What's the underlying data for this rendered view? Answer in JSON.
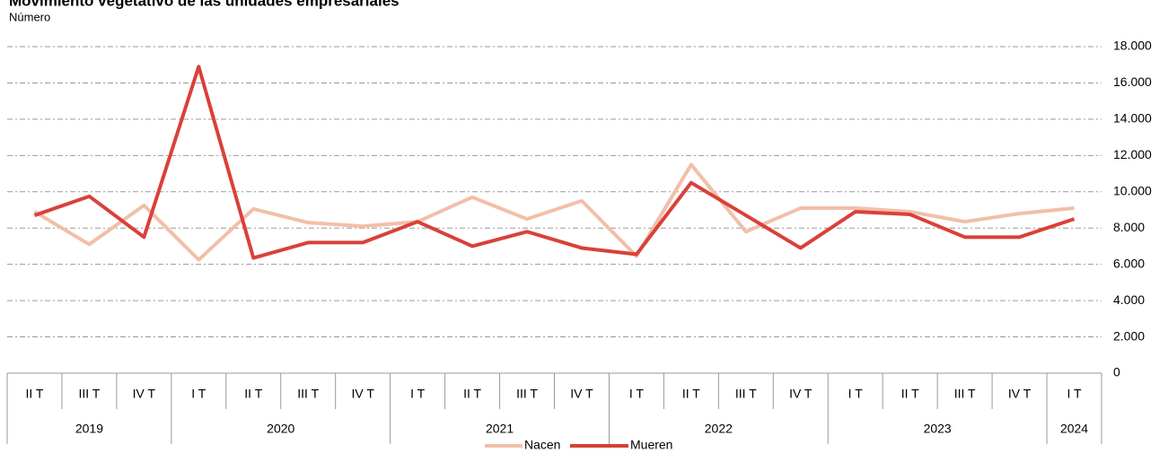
{
  "chart_data": {
    "type": "line",
    "title": "Movimiento vegetativo de las unidades empresariales",
    "subtitle": "Número",
    "years": [
      {
        "label": "2019",
        "quarters": [
          "II T",
          "III T",
          "IV T"
        ]
      },
      {
        "label": "2020",
        "quarters": [
          "I T",
          "II T",
          "III T",
          "IV T"
        ]
      },
      {
        "label": "2021",
        "quarters": [
          "I T",
          "II T",
          "III T",
          "IV T"
        ]
      },
      {
        "label": "2022",
        "quarters": [
          "I T",
          "II T",
          "III T",
          "IV T"
        ]
      },
      {
        "label": "2023",
        "quarters": [
          "I T",
          "II T",
          "III T",
          "IV T"
        ]
      },
      {
        "label": "2024",
        "quarters": [
          "I T"
        ]
      }
    ],
    "series": [
      {
        "name": "Nacen",
        "color": "#f2bfa8",
        "values": [
          8900,
          7100,
          9250,
          6250,
          9050,
          8300,
          8100,
          8350,
          9700,
          8500,
          9500,
          6450,
          11500,
          7800,
          9100,
          9100,
          8900,
          8350,
          8800,
          9100
        ]
      },
      {
        "name": "Mueren",
        "color": "#d9413a",
        "values": [
          8700,
          9750,
          7500,
          16900,
          6350,
          7200,
          7200,
          8350,
          7000,
          7800,
          6900,
          6550,
          10500,
          8700,
          6900,
          8900,
          8750,
          7500,
          7500,
          8500
        ]
      }
    ],
    "ylim": [
      0,
      18000
    ],
    "yticks": [
      0,
      {
        "value": 2000,
        "label": "2.000"
      },
      {
        "value": 4000,
        "label": "4.000"
      },
      {
        "value": 6000,
        "label": "6.000"
      },
      {
        "value": 8000,
        "label": "8.000"
      },
      {
        "value": 10000,
        "label": "10.000"
      },
      {
        "value": 12000,
        "label": "12.000"
      },
      {
        "value": 14000,
        "label": "14.000"
      },
      {
        "value": 16000,
        "label": "16.000"
      },
      {
        "value": 18000,
        "label": "18.000"
      }
    ],
    "grid": true,
    "legend": "bottom"
  }
}
